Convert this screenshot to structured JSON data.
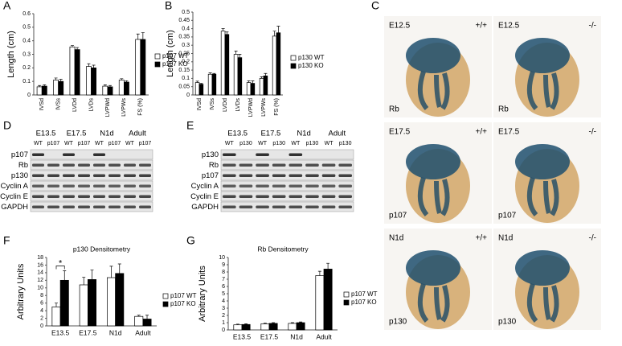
{
  "panel_labels": [
    "A",
    "B",
    "C",
    "D",
    "E",
    "F",
    "G"
  ],
  "chart_data": [
    {
      "type": "bar",
      "ylabel": "Length (cm)",
      "categories": [
        "IVSd",
        "IVSs",
        "LVDd",
        "LVDs",
        "LVPWd",
        "LVPWs",
        "FS (%)"
      ],
      "series": [
        {
          "name": "p107 WT",
          "color": "#ffffff",
          "values": [
            0.06,
            0.11,
            0.355,
            0.21,
            0.065,
            0.11,
            0.41
          ],
          "errors": [
            0.01,
            0.015,
            0.01,
            0.02,
            0.01,
            0.01,
            0.04
          ]
        },
        {
          "name": "p107 KO",
          "color": "#000000",
          "values": [
            0.065,
            0.1,
            0.335,
            0.2,
            0.06,
            0.095,
            0.41
          ],
          "errors": [
            0.01,
            0.015,
            0.015,
            0.02,
            0.01,
            0.01,
            0.05
          ]
        }
      ],
      "ylim": [
        0,
        0.6
      ],
      "yticks": [
        0,
        0.1,
        0.2,
        0.3,
        0.4,
        0.5,
        0.6
      ]
    },
    {
      "type": "bar",
      "ylabel": "Length (cm)",
      "categories": [
        "IVSd",
        "IVSs",
        "LVDd",
        "LVDs",
        "LVPWd",
        "LVPWs",
        "FS (%)"
      ],
      "series": [
        {
          "name": "p130 WT",
          "color": "#ffffff",
          "values": [
            0.075,
            0.125,
            0.385,
            0.245,
            0.075,
            0.1,
            0.355
          ],
          "errors": [
            0.008,
            0.008,
            0.015,
            0.02,
            0.01,
            0.01,
            0.03
          ]
        },
        {
          "name": "p130 KO",
          "color": "#000000",
          "values": [
            0.065,
            0.125,
            0.365,
            0.225,
            0.07,
            0.115,
            0.375
          ],
          "errors": [
            0.005,
            0.005,
            0.015,
            0.02,
            0.015,
            0.015,
            0.04
          ]
        }
      ],
      "ylim": [
        0,
        0.5
      ],
      "yticks": [
        0,
        0.05,
        0.1,
        0.15,
        0.2,
        0.25,
        0.3,
        0.35,
        0.4,
        0.45,
        0.5
      ]
    },
    {
      "type": "bar",
      "title": "p130 Densitometry",
      "ylabel": "Arbitrary Units",
      "annotation": "*",
      "categories": [
        "E13.5",
        "E17.5",
        "N1d",
        "Adult"
      ],
      "series": [
        {
          "name": "p107 WT",
          "color": "#ffffff",
          "values": [
            5,
            10.8,
            12.7,
            2.5
          ],
          "errors": [
            1,
            2,
            3,
            0.3
          ]
        },
        {
          "name": "p107 KO",
          "color": "#000000",
          "values": [
            12,
            12.2,
            13.8,
            1.8
          ],
          "errors": [
            2.5,
            2.5,
            2.5,
            1
          ]
        }
      ],
      "ylim": [
        0,
        18
      ],
      "yticks": [
        0,
        2,
        4,
        6,
        8,
        10,
        12,
        14,
        16,
        18
      ]
    },
    {
      "type": "bar",
      "title": "Rb Densitometry",
      "ylabel": "Arbitrary Units",
      "categories": [
        "E13.5",
        "E17.5",
        "N1d",
        "Adult"
      ],
      "series": [
        {
          "name": "p107 WT",
          "color": "#ffffff",
          "values": [
            0.7,
            0.85,
            0.9,
            7.5
          ],
          "errors": [
            0.1,
            0.1,
            0.1,
            0.6
          ]
        },
        {
          "name": "p107 KO",
          "color": "#000000",
          "values": [
            0.75,
            0.9,
            1.0,
            8.4
          ],
          "errors": [
            0.1,
            0.1,
            0.1,
            0.8
          ]
        }
      ],
      "ylim": [
        0,
        10
      ],
      "yticks": [
        0,
        1,
        2,
        3,
        4,
        5,
        6,
        7,
        8,
        9,
        10
      ]
    }
  ],
  "blots": [
    {
      "conditions": [
        "E13.5",
        "E17.5",
        "N1d",
        "Adult"
      ],
      "lanes": [
        "WT",
        "p107",
        "WT",
        "p107",
        "WT",
        "p107",
        "WT",
        "p107"
      ],
      "proteins": [
        "p107",
        "Rb",
        "p130",
        "Cyclin A",
        "Cyclin E",
        "GAPDH"
      ]
    },
    {
      "conditions": [
        "E13.5",
        "E17.5",
        "N1d",
        "Adult"
      ],
      "lanes": [
        "WT",
        "p130",
        "WT",
        "p130",
        "WT",
        "p130",
        "WT",
        "p130"
      ],
      "proteins": [
        "p130",
        "Rb",
        "p107",
        "Cyclin A",
        "Cyclin E",
        "GAPDH"
      ]
    }
  ],
  "embryo_images": [
    {
      "stage": "E12.5",
      "genotype": "+/+",
      "gene": "Rb"
    },
    {
      "stage": "E12.5",
      "genotype": "-/-",
      "gene": "Rb"
    },
    {
      "stage": "E17.5",
      "genotype": "+/+",
      "gene": "p107"
    },
    {
      "stage": "E17.5",
      "genotype": "-/-",
      "gene": "p107"
    },
    {
      "stage": "N1d",
      "genotype": "+/+",
      "gene": "p130"
    },
    {
      "stage": "N1d",
      "genotype": "-/-",
      "gene": "p130"
    }
  ]
}
